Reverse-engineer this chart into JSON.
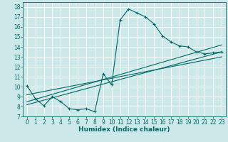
{
  "bg_color": "#cce8e8",
  "grid_color": "#ffffff",
  "line_color": "#006666",
  "xlabel": "Humidex (Indice chaleur)",
  "xlim": [
    -0.5,
    23.5
  ],
  "ylim": [
    7,
    18.5
  ],
  "xticks": [
    0,
    1,
    2,
    3,
    4,
    5,
    6,
    7,
    8,
    9,
    10,
    11,
    12,
    13,
    14,
    15,
    16,
    17,
    18,
    19,
    20,
    21,
    22,
    23
  ],
  "yticks": [
    7,
    8,
    9,
    10,
    11,
    12,
    13,
    14,
    15,
    16,
    17,
    18
  ],
  "main_series": {
    "x": [
      0,
      1,
      2,
      3,
      4,
      5,
      6,
      7,
      8,
      9,
      10,
      11,
      12,
      13,
      14,
      15,
      16,
      17,
      18,
      19,
      20,
      21,
      22,
      23
    ],
    "y": [
      10.1,
      8.8,
      8.1,
      9.0,
      8.5,
      7.8,
      7.7,
      7.8,
      7.5,
      11.3,
      10.2,
      16.7,
      17.8,
      17.4,
      17.0,
      16.3,
      15.1,
      14.5,
      14.1,
      14.0,
      13.5,
      13.3,
      13.4,
      13.5
    ]
  },
  "trend_lines": [
    {
      "x": [
        0,
        23
      ],
      "y": [
        8.5,
        14.2
      ]
    },
    {
      "x": [
        0,
        23
      ],
      "y": [
        8.2,
        13.5
      ]
    },
    {
      "x": [
        0,
        23
      ],
      "y": [
        9.2,
        13.0
      ]
    }
  ]
}
